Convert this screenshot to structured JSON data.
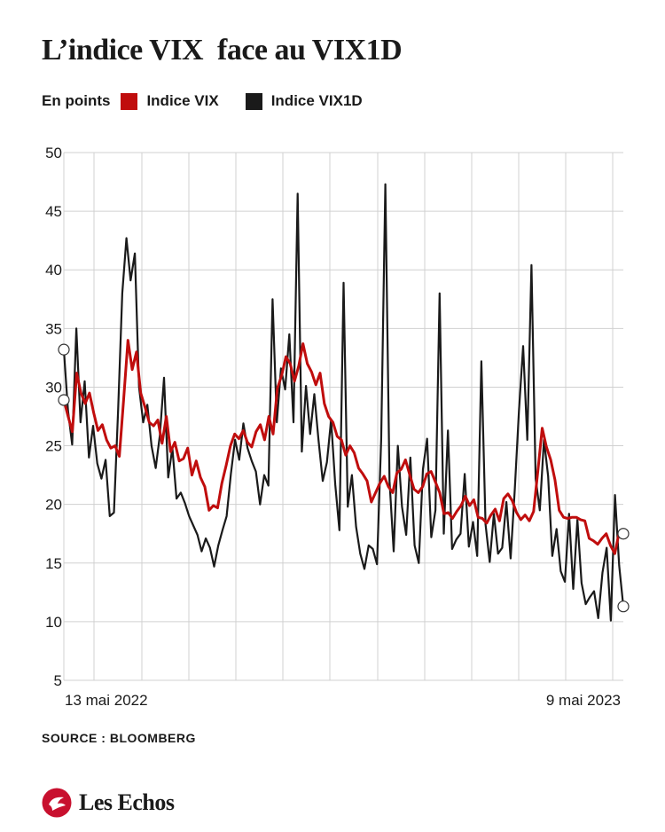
{
  "title": "L’indice VIX  face au VIX1D",
  "legend": {
    "unit": "En points",
    "items": [
      {
        "label": "Indice VIX",
        "color": "#c00d0d"
      },
      {
        "label": "Indice VIX1D",
        "color": "#1a1a1a"
      }
    ]
  },
  "source": "SOURCE : BLOOMBERG",
  "brand": {
    "name": "Les Echos",
    "color": "#c8102e"
  },
  "chart_data": {
    "type": "line",
    "ylim": [
      5,
      50
    ],
    "yticks": [
      5,
      10,
      15,
      20,
      25,
      30,
      35,
      40,
      45,
      50
    ],
    "grid": true,
    "x_labels": [
      "13 mai 2022",
      "9 mai 2023"
    ],
    "series": [
      {
        "name": "Indice VIX",
        "color": "#c00d0d",
        "end_markers": true,
        "values": [
          28.9,
          27.5,
          26.2,
          31.2,
          29.5,
          28.6,
          29.5,
          27.8,
          26.3,
          26.8,
          25.5,
          24.8,
          25.0,
          24.1,
          28.9,
          34.0,
          31.5,
          33.0,
          29.5,
          28.3,
          27.0,
          26.7,
          27.2,
          25.2,
          27.5,
          24.5,
          25.3,
          23.7,
          23.9,
          24.8,
          22.5,
          23.7,
          22.3,
          21.5,
          19.5,
          19.9,
          19.7,
          21.8,
          23.3,
          25.0,
          26.0,
          25.6,
          26.3,
          25.3,
          24.9,
          26.2,
          26.8,
          25.5,
          27.5,
          26.0,
          29.9,
          31.0,
          32.6,
          32.0,
          30.5,
          31.8,
          33.7,
          32.0,
          31.3,
          30.2,
          31.2,
          28.6,
          27.5,
          27.0,
          25.8,
          25.5,
          24.2,
          25.0,
          24.4,
          23.1,
          22.6,
          22.0,
          20.2,
          21.0,
          21.8,
          22.4,
          21.5,
          21.0,
          22.7,
          23.0,
          23.8,
          22.5,
          21.3,
          21.0,
          21.5,
          22.6,
          22.8,
          21.9,
          21.0,
          19.2,
          19.3,
          18.8,
          19.4,
          19.9,
          20.7,
          19.9,
          20.4,
          18.9,
          18.8,
          18.4,
          19.1,
          19.6,
          18.6,
          20.5,
          20.9,
          20.3,
          19.3,
          18.7,
          19.1,
          18.6,
          19.4,
          22.9,
          26.5,
          24.9,
          23.8,
          22.1,
          19.5,
          18.9,
          18.8,
          18.9,
          18.9,
          18.7,
          18.6,
          17.1,
          16.9,
          16.6,
          17.1,
          17.5,
          16.5,
          15.8,
          17.6,
          17.3
        ],
        "endpoints": [
          28.9,
          17.5
        ]
      },
      {
        "name": "Indice VIX1D",
        "color": "#1a1a1a",
        "end_markers": true,
        "values": [
          33.2,
          28.0,
          25.1,
          35.0,
          27.0,
          30.5,
          24.0,
          26.7,
          23.5,
          22.2,
          23.8,
          19.0,
          19.3,
          28.0,
          38.0,
          42.7,
          39.1,
          41.4,
          30.0,
          27.0,
          28.5,
          25.0,
          23.1,
          25.9,
          30.8,
          22.3,
          24.8,
          20.5,
          21.0,
          20.1,
          19.0,
          18.2,
          17.4,
          16.0,
          17.1,
          16.3,
          14.7,
          16.5,
          17.8,
          19.0,
          22.6,
          25.5,
          23.8,
          26.9,
          24.8,
          23.7,
          22.8,
          20.0,
          22.5,
          21.6,
          37.5,
          27.0,
          31.6,
          29.8,
          34.5,
          27.0,
          46.5,
          24.5,
          30.1,
          26.0,
          29.4,
          25.5,
          22.0,
          23.6,
          27.2,
          21.7,
          17.8,
          38.9,
          19.8,
          22.5,
          18.1,
          15.8,
          14.5,
          16.5,
          16.2,
          14.9,
          25.5,
          47.3,
          22.0,
          16.0,
          25.0,
          19.8,
          17.4,
          24.0,
          16.5,
          15.0,
          23.0,
          25.6,
          17.2,
          19.5,
          38.0,
          17.5,
          26.3,
          16.2,
          17.0,
          17.5,
          22.6,
          16.4,
          18.5,
          15.6,
          32.2,
          18.3,
          15.1,
          19.2,
          15.8,
          16.3,
          20.2,
          15.4,
          21.3,
          28.0,
          33.5,
          25.5,
          40.4,
          22.2,
          19.5,
          25.5,
          22.4,
          15.6,
          17.9,
          14.3,
          13.4,
          19.2,
          12.8,
          18.7,
          13.3,
          11.5,
          12.1,
          12.6,
          10.3,
          14.2,
          16.3,
          10.1,
          20.8,
          14.8,
          11.3
        ],
        "endpoints": [
          33.2,
          11.3
        ]
      }
    ]
  }
}
